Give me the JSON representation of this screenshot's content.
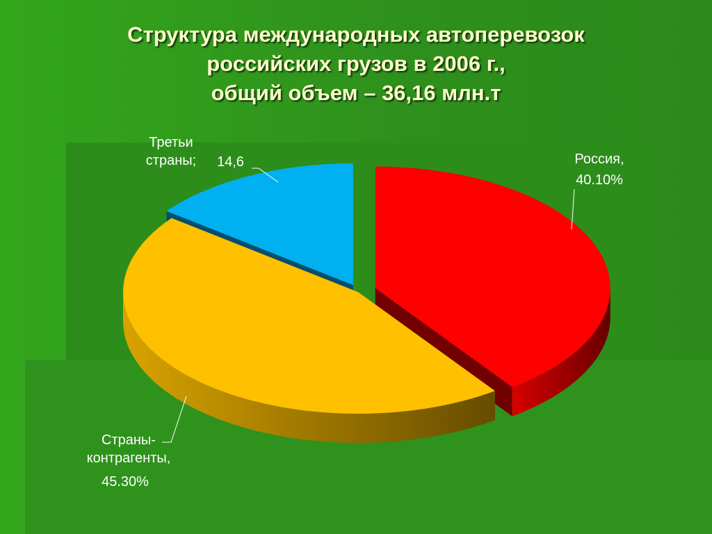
{
  "chart_data": {
    "type": "pie",
    "title": [
      "Структура международных автоперевозок",
      "российских  грузов в 2006 г.,",
      "общий объем – 36,16 млн.т"
    ],
    "categories": [
      "Россия,",
      "Страны-контрагенты,",
      "Третьи страны;"
    ],
    "values": [
      40.1,
      45.3,
      14.6
    ],
    "value_labels": [
      "40.10%",
      "45.30%",
      "14,6"
    ],
    "colors": [
      "#ff0000",
      "#ffc000",
      "#00b0f0"
    ]
  }
}
